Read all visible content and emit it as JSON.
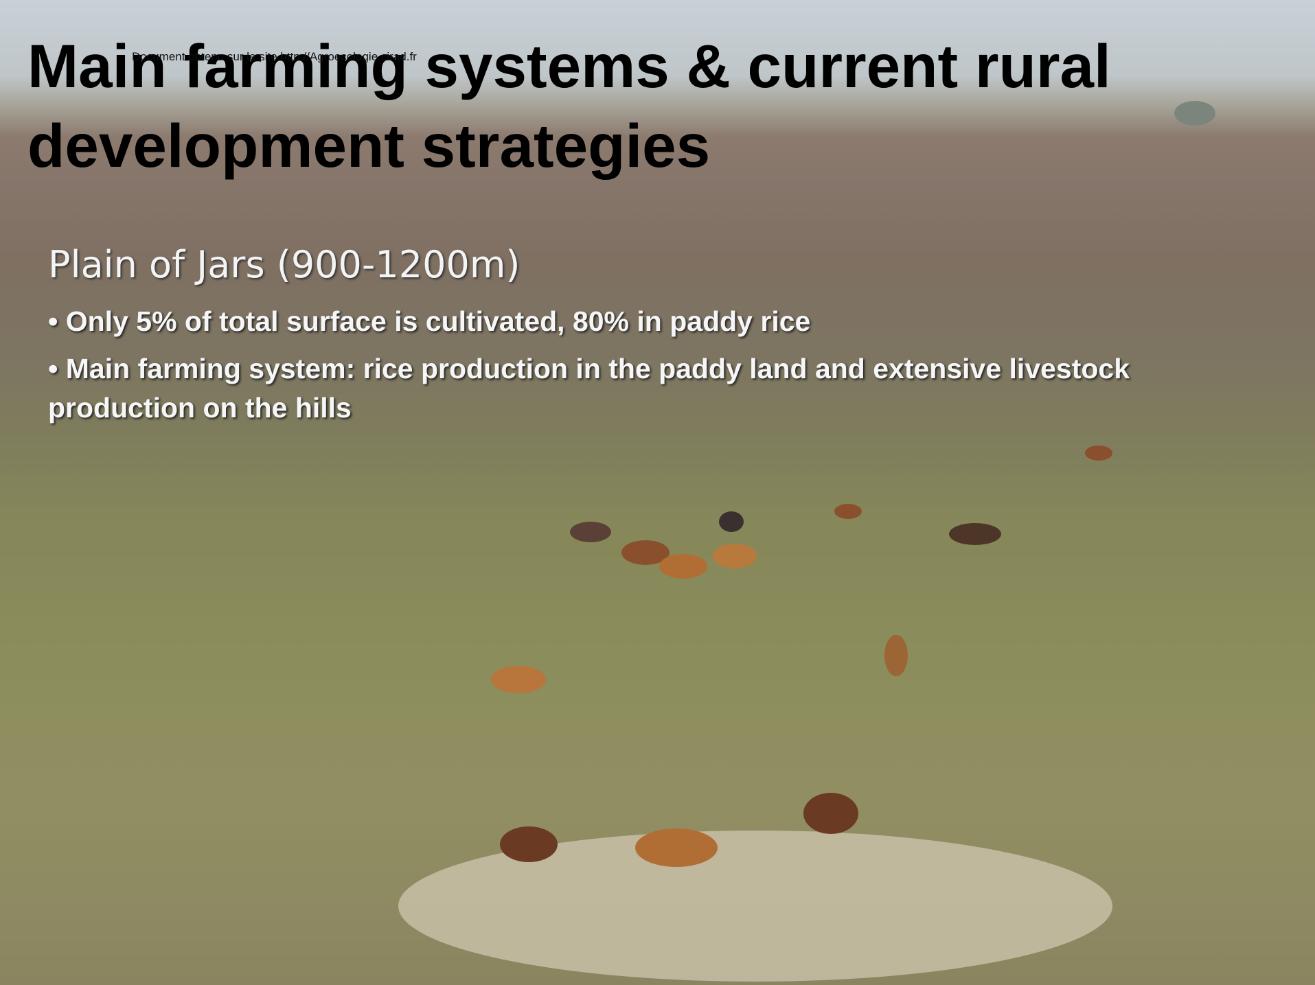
{
  "slide": {
    "title": "Main farming systems & current rural development strategies",
    "watermark": "Document obtenu sur le site http://Agroecologie.cirad.fr",
    "subtitle": "Plain of Jars (900-1200m)",
    "bullets": [
      "Only 5% of total surface is cultivated, 80% in paddy rice",
      "Main farming system: rice production in the paddy land and extensive livestock production on the hills"
    ]
  }
}
